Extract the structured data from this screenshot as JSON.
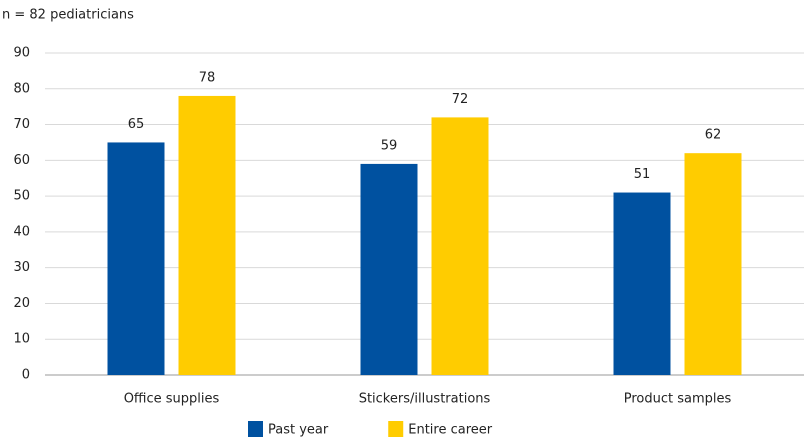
{
  "chart_data": {
    "type": "bar",
    "subtitle": "n = 82 pediatricians",
    "categories": [
      "Office supplies",
      "Stickers/illustrations",
      "Product samples"
    ],
    "series": [
      {
        "name": "Past year",
        "color": "#0051a0",
        "values": [
          65,
          59,
          51
        ]
      },
      {
        "name": "Entire career",
        "color": "#ffcc00",
        "values": [
          78,
          72,
          62
        ]
      }
    ],
    "ylim": [
      0,
      90
    ],
    "yticks": [
      0,
      10,
      20,
      30,
      40,
      50,
      60,
      70,
      80,
      90
    ],
    "grid": true
  }
}
